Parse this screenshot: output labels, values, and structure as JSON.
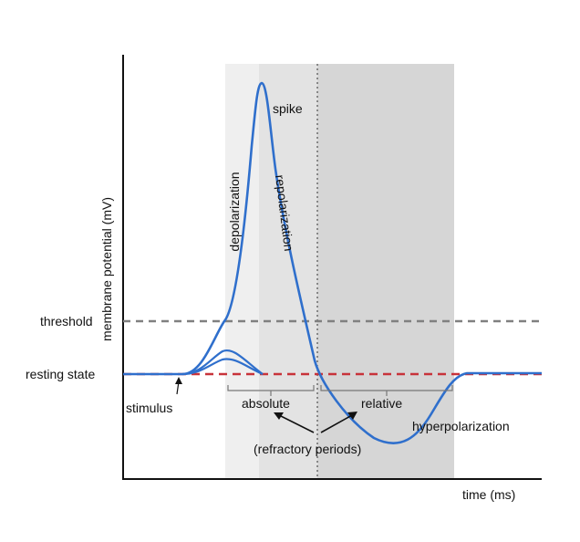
{
  "diagram": {
    "axes": {
      "y_label": "membrane potential (mV)",
      "x_label": "time (ms)"
    },
    "levels": {
      "threshold": "threshold",
      "resting": "resting state"
    },
    "phases": {
      "spike": "spike",
      "depolarization": "depolarization",
      "repolarization": "repolarization",
      "hyperpolarization": "hyperpolarization",
      "stimulus": "stimulus"
    },
    "refractory": {
      "absolute": "absolute",
      "relative": "relative",
      "caption": "(refractory periods)"
    },
    "colors": {
      "trace": "#2f6fcc",
      "resting_line": "#c8333a",
      "threshold_line": "#808080",
      "absolute_band": "#efefef",
      "absolute_band_dark": "#e3e3e3",
      "relative_band": "#d6d6d6"
    }
  }
}
